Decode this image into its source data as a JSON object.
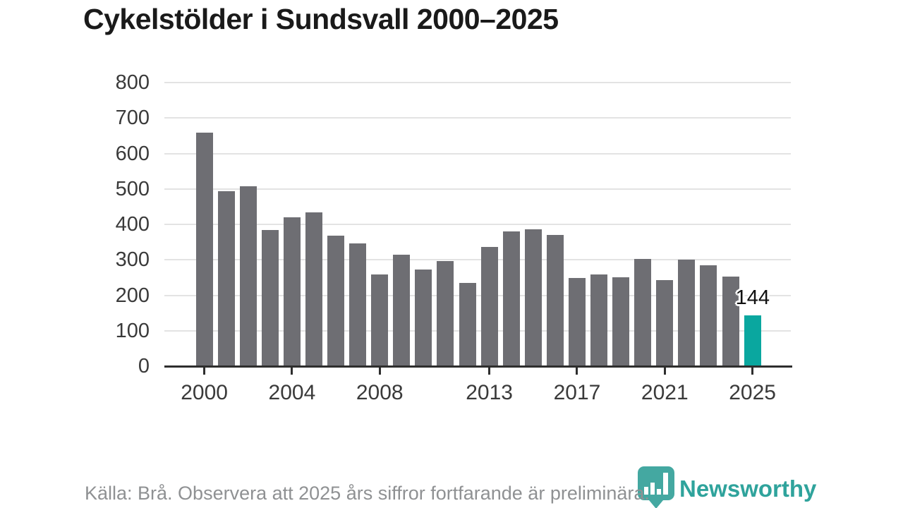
{
  "title": "Cykelstölder i Sundsvall 2000–2025",
  "footer": {
    "source_note": "Källa: Brå. Observera att 2025 års siffror fortfarande är preliminära.",
    "brand": "Newsworthy"
  },
  "colors": {
    "bar": "#6e6e73",
    "highlight": "#0aa79f",
    "grid": "#e3e3e3",
    "axis": "#2e2e2e",
    "tick_label": "#3a3a3a",
    "title": "#1a1a1a",
    "footer_text": "#8f9193",
    "brand_teal": "#2fa39c"
  },
  "chart_data": {
    "type": "bar",
    "title": "Cykelstölder i Sundsvall 2000–2025",
    "xlabel": "",
    "ylabel": "",
    "x": [
      2000,
      2001,
      2002,
      2003,
      2004,
      2005,
      2006,
      2007,
      2008,
      2009,
      2010,
      2011,
      2012,
      2013,
      2014,
      2015,
      2016,
      2017,
      2018,
      2019,
      2020,
      2021,
      2022,
      2023,
      2024,
      2025
    ],
    "values": [
      659,
      494,
      507,
      385,
      419,
      434,
      368,
      346,
      258,
      315,
      273,
      296,
      234,
      337,
      380,
      387,
      370,
      249,
      259,
      251,
      303,
      243,
      301,
      284,
      252,
      144
    ],
    "highlight_index": 25,
    "highlight_label": "144",
    "x_tick_labels": [
      "2000",
      "2004",
      "2008",
      "2013",
      "2017",
      "2021",
      "2025"
    ],
    "y_ticks": [
      0,
      100,
      200,
      300,
      400,
      500,
      600,
      700,
      800
    ],
    "ylim": [
      0,
      800
    ],
    "grid": "horizontal-only",
    "legend_position": "none"
  }
}
